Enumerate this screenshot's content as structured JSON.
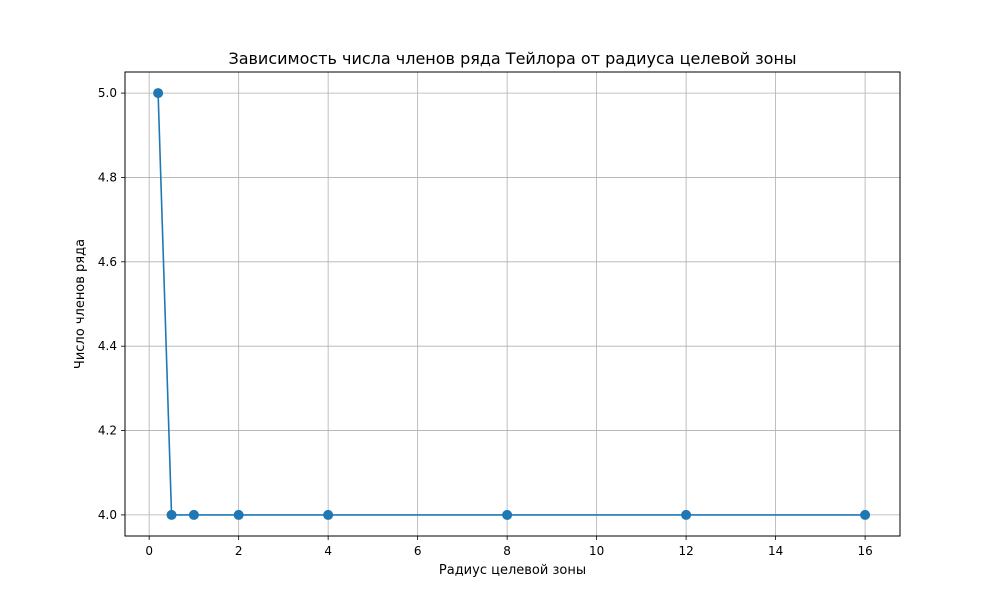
{
  "chart_data": {
    "type": "line",
    "title": "Зависимость числа членов ряда Тейлора от радиуса целевой зоны",
    "xlabel": "Радиус целевой зоны",
    "ylabel": "Число членов ряда",
    "xlim": [
      -0.54,
      16.78
    ],
    "ylim": [
      3.95,
      5.05
    ],
    "xticks": [
      0,
      2,
      4,
      6,
      8,
      10,
      12,
      14,
      16
    ],
    "yticks": [
      4.0,
      4.2,
      4.4,
      4.6,
      4.8,
      5.0
    ],
    "grid": true,
    "series": [
      {
        "x": [
          0.2,
          0.5,
          1,
          2,
          4,
          8,
          12,
          16
        ],
        "y": [
          5,
          4,
          4,
          4,
          4,
          4,
          4,
          4
        ],
        "color": "#1f77b4",
        "marker": "circle"
      }
    ]
  },
  "colors": {
    "series": "#1f77b4",
    "grid": "#b0b0b0",
    "axes": "#000000"
  }
}
